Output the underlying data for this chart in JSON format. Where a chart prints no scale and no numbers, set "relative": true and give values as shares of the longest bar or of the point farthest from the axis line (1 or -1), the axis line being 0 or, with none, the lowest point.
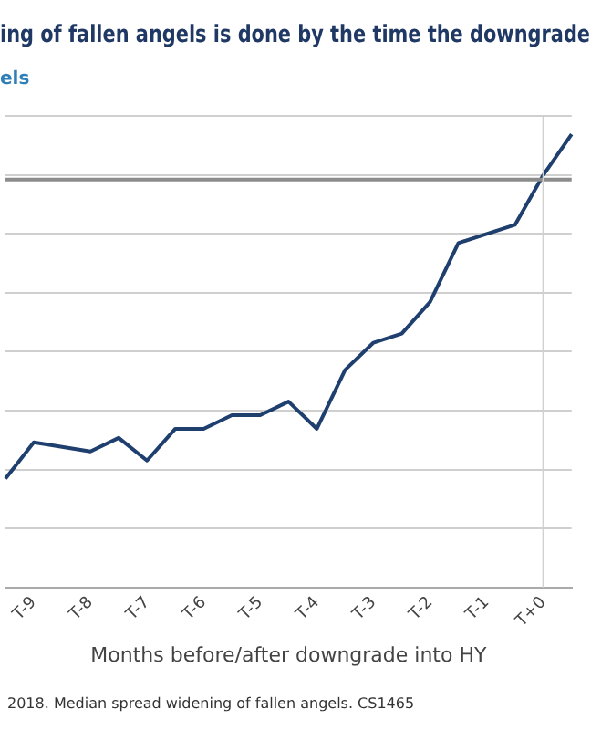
{
  "chart_data": {
    "type": "line",
    "title": "ing of fallen angels is done by the time the downgrade",
    "subtitle": "els",
    "xlabel": "Months before/after downgrade into HY",
    "categories": [
      null,
      "T-9",
      null,
      "T-8",
      null,
      "T-7",
      null,
      "T-6",
      null,
      "T-5",
      null,
      "T-4",
      null,
      "T-3",
      null,
      "T-2",
      null,
      "T-1",
      null,
      "T+0",
      null
    ],
    "series": [
      {
        "color": "#1f3f6e",
        "values": [
          0.24,
          0.32,
          0.31,
          0.3,
          0.33,
          0.28,
          0.35,
          0.35,
          0.38,
          0.38,
          0.41,
          0.35,
          0.48,
          0.54,
          0.56,
          0.63,
          0.76,
          0.78,
          0.8,
          0.91,
          1
        ]
      }
    ],
    "relative": true,
    "grid": "y",
    "legend": false,
    "marker": "none",
    "line_style": "solid",
    "ref_lines": [
      {
        "axis": "y",
        "value": 0.9,
        "color": "#8c8c8c"
      },
      {
        "axis": "x",
        "value": "T+0",
        "color": "#d0d0d0"
      }
    ],
    "annotations": [
      "2018. Median spread widening of fallen angels. CS1465"
    ]
  }
}
